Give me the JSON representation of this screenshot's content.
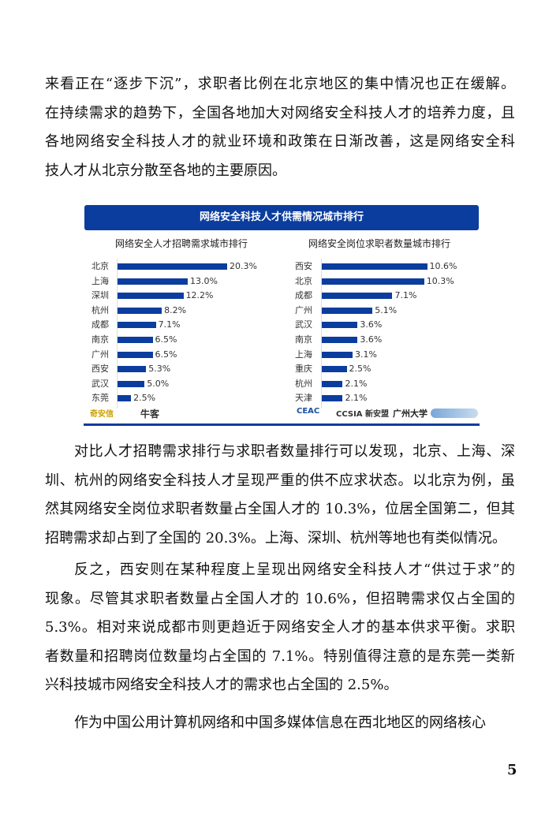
{
  "paragraphs": [
    {
      "lines": [
        "来看正在“逐步下沉”，求职者比例在北京地区的集中情况也正在缓解。",
        "在持续需求的趋势下，全国各地加大对网络安全科技人才的培养力度，且",
        "各地网络安全科技人才的就业环境和政策在日渐改善，这是网络安全科",
        "技人才从北京分散至各地的主要原因。"
      ]
    },
    {
      "lines": [
        "对比人才招聘需求排行与求职者数量排行可以发现，北京、上海、深",
        "圳、杭州的网络安全科技人才呈现严重的供不应求状态。以北京为例，虽",
        "然其网络安全岗位求职者数量占全国人才的 10.3%，位居全国第二，但其",
        "招聘需求却占到了全国的 20.3%。上海、深圳、杭州等地也有类似情况。"
      ]
    },
    {
      "lines": [
        "反之，西安则在某种程度上呈现出网络安全科技人才“供过于求”的",
        "现象。尽管其求职者数量占全国人才的 10.6%，但招聘需求仅占全国的",
        "5.3%。相对来说成都市则更趋近于网络安全人才的基本供求平衡。求职",
        "者数量和招聘岗位数量均占全国的 7.1%。特别值得注意的是东莞一类新",
        "兴科技城市网络安全科技人才的需求也占全国的 2.5%。"
      ]
    },
    {
      "lines": [
        "作为中国公用计算机网络和中国多媒体信息在西北地区的网络核心"
      ]
    }
  ],
  "chart_data": [
    {
      "type": "bar",
      "orientation": "horizontal",
      "title": "网络安全人才招聘需求城市排行",
      "categories": [
        "北京",
        "上海",
        "深圳",
        "杭州",
        "成都",
        "南京",
        "广州",
        "西安",
        "武汉",
        "东莞"
      ],
      "values": [
        20.3,
        13.0,
        12.2,
        8.2,
        7.1,
        6.5,
        6.5,
        5.3,
        5.0,
        2.5
      ],
      "labels": [
        "20.3%",
        "13.0%",
        "12.2%",
        "8.2%",
        "7.1%",
        "6.5%",
        "6.5%",
        "5.3%",
        "5.0%",
        "2.5%"
      ],
      "color": "#0b3d9e"
    },
    {
      "type": "bar",
      "orientation": "horizontal",
      "title": "网络安全岗位求职者数量城市排行",
      "categories": [
        "西安",
        "北京",
        "成都",
        "广州",
        "武汉",
        "南京",
        "上海",
        "重庆",
        "杭州",
        "天津"
      ],
      "values": [
        10.6,
        10.3,
        7.1,
        5.1,
        3.6,
        3.6,
        3.1,
        2.5,
        2.1,
        2.1
      ],
      "labels": [
        "10.6%",
        "10.3%",
        "7.1%",
        "5.1%",
        "3.6%",
        "3.6%",
        "3.1%",
        "2.5%",
        "2.1%",
        "2.1%"
      ],
      "color": "#0b3d9e"
    }
  ],
  "chart_header": "网络安全科技人才供需情况城市排行",
  "logos": [
    "奇安信",
    "牛客",
    "CEAC",
    "CCSIA 新安盟",
    "广州大学"
  ],
  "page_number": "5"
}
